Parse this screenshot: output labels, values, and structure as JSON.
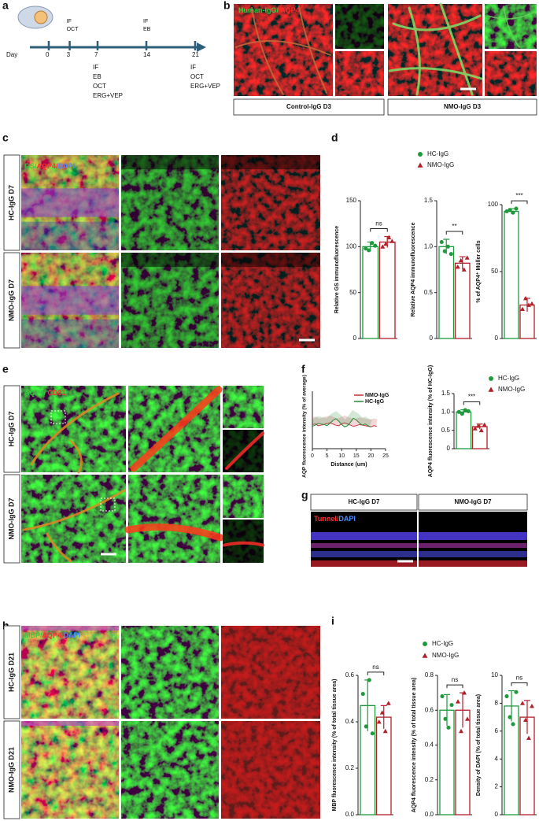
{
  "panel_labels": [
    "a",
    "b",
    "c",
    "d",
    "e",
    "f",
    "g",
    "h",
    "i"
  ],
  "timeline": {
    "day_label": "Day",
    "days": [
      {
        "day": 0
      },
      {
        "day": 3,
        "above": [
          "IF",
          "OCT"
        ]
      },
      {
        "day": 7,
        "below": [
          "IF",
          "EB",
          "OCT",
          "ERG+VEP"
        ]
      },
      {
        "day": 14,
        "above": [
          "IF",
          "EB"
        ]
      },
      {
        "day": 21,
        "below": [
          "IF",
          "OCT",
          "ERG+VEP"
        ]
      }
    ]
  },
  "panel_b": {
    "stain": [
      "Human-IgG/ ",
      "AQP4"
    ],
    "captions": [
      "Control-IgG D3",
      "NMO-IgG D3"
    ]
  },
  "panel_c": {
    "stain": [
      "GS/",
      "AQP4/",
      "DAPI"
    ],
    "rows": [
      "HC-IgG D7",
      "NMO-IgG D7"
    ]
  },
  "panel_e": {
    "stain": [
      "AQP4/ ",
      "CD31"
    ],
    "rows": [
      "HC-IgG D7",
      "NMO-IgG D7"
    ]
  },
  "panel_g": {
    "stain": [
      "Tunnel/",
      "DAPI"
    ],
    "headers": [
      "HC-IgG D7",
      "NMO-IgG D7"
    ]
  },
  "panel_h": {
    "stain": [
      "MBP/",
      "AQP4/",
      "DAPI"
    ],
    "rows": [
      "HC-IgG D21",
      "NMO-IgG D21"
    ]
  },
  "chart_data": [
    {
      "type": "bar",
      "series": [
        {
          "name": "HC-IgG",
          "color": "#1e9a3c",
          "marker": "circle"
        },
        {
          "name": "NMO-IgG",
          "color": "#b3202a",
          "marker": "triangle"
        }
      ],
      "subplots": [
        {
          "ylabel": "Relative GS immunofluorescence",
          "ylim": [
            0,
            150
          ],
          "yticks": [
            0,
            50,
            100,
            150
          ],
          "values": [
            100,
            105
          ],
          "errors": [
            5,
            6
          ],
          "points": [
            [
              98,
              96,
              104,
              101
            ],
            [
              100,
              103,
              110,
              106
            ]
          ],
          "significance": "ns"
        },
        {
          "ylabel": "Relative AQP4 immunofluorescence",
          "ylim": [
            0,
            1.5
          ],
          "yticks": [
            0,
            0.5,
            {
              "value": 1,
              "label": "1.0"
            },
            1.5
          ],
          "values": [
            1.0,
            0.82
          ],
          "errors": [
            0.08,
            0.07
          ],
          "points": [
            [
              1.05,
              0.95,
              1.0,
              0.92
            ],
            [
              0.78,
              0.85,
              0.75,
              0.88
            ]
          ],
          "significance": "**"
        },
        {
          "ylabel": "% of AQP4⁺ Müller cells",
          "ylim": [
            0,
            100
          ],
          "yticks": [
            0,
            50,
            100
          ],
          "values": [
            95,
            25
          ],
          "errors": [
            2,
            5
          ],
          "points": [
            [
              95,
              96,
              94,
              97
            ],
            [
              22,
              30,
              25,
              26
            ]
          ],
          "significance": "***"
        }
      ]
    },
    {
      "type": "line",
      "xlabel": "Distance (um)",
      "ylabel": "AQP fluorescence intensity (% of average)",
      "xlim": [
        0,
        25
      ],
      "xticks": [
        0,
        5,
        10,
        15,
        20,
        25
      ],
      "ylim": [
        0,
        200
      ],
      "series": [
        {
          "name": "NMO-IgG",
          "color": "#c0303a",
          "x": [
            0,
            1,
            2,
            3,
            4,
            5,
            6,
            7,
            8,
            9,
            10,
            11,
            12,
            13,
            14,
            15,
            16,
            17,
            18,
            19,
            20,
            21,
            22
          ],
          "values": [
            84,
            86,
            80,
            82,
            84,
            88,
            90,
            86,
            82,
            80,
            86,
            90,
            86,
            82,
            78,
            80,
            84,
            82,
            80,
            78,
            76,
            80,
            78
          ]
        },
        {
          "name": "HC-IgG",
          "color": "#2a8a35",
          "x": [
            0,
            1,
            2,
            3,
            4,
            5,
            6,
            7,
            8,
            9,
            10,
            11,
            12,
            13,
            14,
            15,
            16,
            17,
            18,
            19,
            20
          ],
          "values": [
            78,
            82,
            88,
            86,
            84,
            80,
            88,
            98,
            104,
            96,
            84,
            76,
            80,
            92,
            106,
            100,
            90,
            82,
            86,
            80,
            76
          ]
        }
      ]
    },
    {
      "type": "bar",
      "series": [
        {
          "name": "HC-IgG",
          "color": "#1e9a3c",
          "marker": "circle"
        },
        {
          "name": "NMO-IgG",
          "color": "#b3202a",
          "marker": "triangle"
        }
      ],
      "subplots": [
        {
          "ylabel": "AQP4 fluorescence intensity (% of HC-IgG)",
          "ylim": [
            0,
            1.5
          ],
          "yticks": [
            0,
            0.5,
            {
              "value": 1,
              "label": "1.0"
            },
            1.5
          ],
          "values": [
            1.0,
            0.6
          ],
          "errors": [
            0.06,
            0.07
          ],
          "points": [
            [
              1.0,
              0.95,
              1.05,
              1.02
            ],
            [
              0.55,
              0.62,
              0.5,
              0.65
            ]
          ],
          "significance": "***"
        }
      ]
    },
    {
      "type": "bar",
      "series": [
        {
          "name": "HC-IgG",
          "color": "#1e9a3c",
          "marker": "circle"
        },
        {
          "name": "NMO-IgG",
          "color": "#b3202a",
          "marker": "triangle"
        }
      ],
      "subplots": [
        {
          "ylabel": "MBP fluorescence intensity (% of total tissue area)",
          "ylim": [
            0,
            0.6
          ],
          "yticks": [
            {
              "value": 0,
              "label": "0.0"
            },
            0.2,
            0.4,
            0.6
          ],
          "values": [
            0.47,
            0.42
          ],
          "errors": [
            0.11,
            0.05
          ],
          "points": [
            [
              0.52,
              0.38,
              0.58,
              0.35
            ],
            [
              0.4,
              0.44,
              0.36,
              0.48
            ]
          ],
          "significance": "ns"
        },
        {
          "ylabel": "AQP4 fluorescence intensity (% of total tissue area)",
          "ylim": [
            0,
            0.8
          ],
          "yticks": [
            {
              "value": 0,
              "label": "0.0"
            },
            0.2,
            0.4,
            0.6,
            0.8
          ],
          "values": [
            0.6,
            0.6
          ],
          "errors": [
            0.09,
            0.1
          ],
          "points": [
            [
              0.68,
              0.55,
              0.5,
              0.63
            ],
            [
              0.65,
              0.48,
              0.7,
              0.55
            ]
          ],
          "significance": "ns"
        },
        {
          "ylabel": "Density of DAPI (% of total tissue area)",
          "ylim": [
            0,
            10
          ],
          "yticks": [
            0,
            2,
            4,
            6,
            8,
            10
          ],
          "values": [
            7.8,
            7.0
          ],
          "errors": [
            1.1,
            1.2
          ],
          "points": [
            [
              8.5,
              7.0,
              6.5,
              8.8
            ],
            [
              8.0,
              6.8,
              5.5,
              7.8
            ]
          ],
          "significance": "ns"
        }
      ]
    }
  ]
}
